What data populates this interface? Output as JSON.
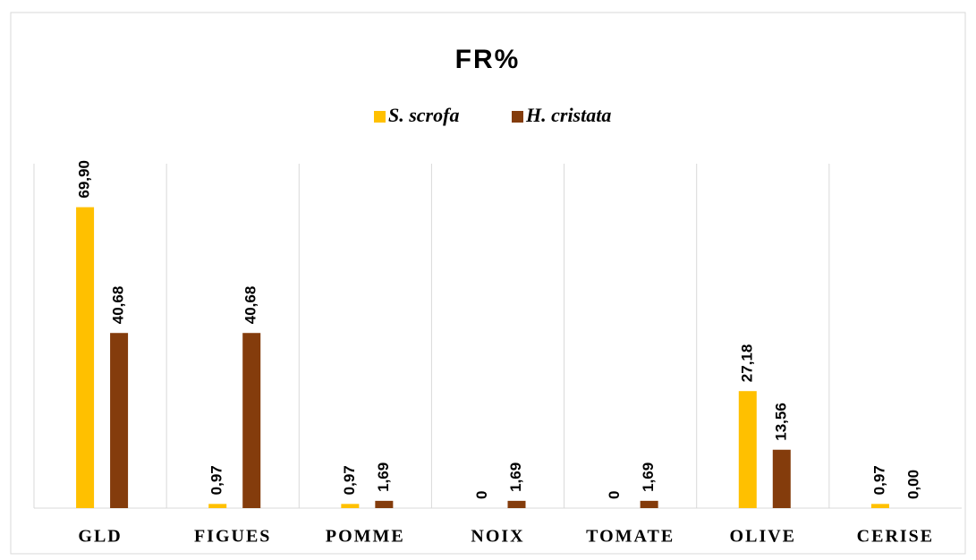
{
  "chart_data": {
    "type": "bar",
    "title": "FR%",
    "categories": [
      "GLD",
      "FIGUES",
      "POMME",
      "NOIX",
      "TOMATE",
      "OLIVE",
      "CERISE"
    ],
    "series": [
      {
        "name": "S. scrofa",
        "color": "#ffc000",
        "values": [
          69.9,
          0.97,
          0.97,
          0,
          0,
          27.18,
          0.97
        ],
        "value_labels": [
          "69,90",
          "0,97",
          "0,97",
          "0",
          "0",
          "27,18",
          "0,97"
        ]
      },
      {
        "name": "H. cristata",
        "color": "#843c0c",
        "values": [
          40.68,
          40.68,
          1.69,
          1.69,
          1.69,
          13.56,
          0
        ],
        "value_labels": [
          "40,68",
          "40,68",
          "1,69",
          "1,69",
          "1,69",
          "13,56",
          "0,00"
        ]
      }
    ],
    "ylim": [
      0,
      80
    ],
    "legend": "top"
  }
}
